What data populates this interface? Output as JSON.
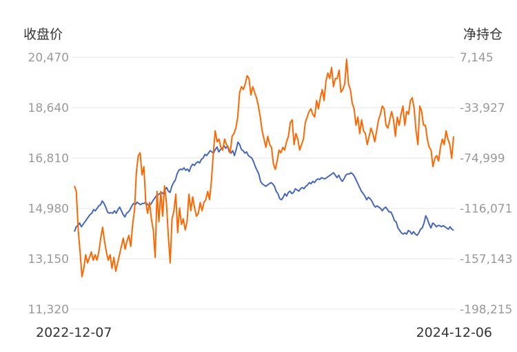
{
  "chart_data": {
    "type": "line",
    "left_axis_title": "收盘价",
    "right_axis_title": "净持仓",
    "x_start_label": "2022-12-07",
    "x_end_label": "2024-12-06",
    "y_left": {
      "ticks": [
        "20,470",
        "18,640",
        "16,810",
        "14,980",
        "13,150",
        "11,320"
      ],
      "range": [
        11320,
        20470
      ]
    },
    "y_right": {
      "ticks": [
        "7,145",
        "-33,927",
        "-74,999",
        "-116,071",
        "-157,143",
        "-198,215"
      ],
      "range": [
        -198215,
        7145
      ]
    },
    "grid": true,
    "series": [
      {
        "axis": "left",
        "color": "#ff6600",
        "values": [
          15800,
          15600,
          14200,
          13400,
          12500,
          12800,
          13300,
          13000,
          13200,
          13400,
          13100,
          13300,
          13100,
          13400,
          13900,
          14300,
          13800,
          13400,
          13100,
          13300,
          12800,
          13200,
          12700,
          13000,
          13300,
          13600,
          13900,
          13500,
          13800,
          14000,
          13600,
          14400,
          14900,
          16300,
          16900,
          17000,
          16200,
          16500,
          15200,
          14800,
          15200,
          14600,
          14200,
          13200,
          15600,
          14500,
          15600,
          14700,
          15800,
          15200,
          14000,
          13000,
          14600,
          14900,
          15500,
          14100,
          15000,
          14400,
          14600,
          14200,
          14500,
          15500,
          14900,
          15400,
          15000,
          14700,
          14800,
          15200,
          14900,
          15200,
          15300,
          15600,
          15300,
          16000,
          17000,
          17800,
          17400,
          17500,
          17200,
          17100,
          17500,
          17300,
          17200,
          17000,
          17600,
          17700,
          17900,
          18300,
          19200,
          19400,
          19300,
          19500,
          19800,
          19700,
          19100,
          19400,
          19200,
          19000,
          18700,
          18300,
          17800,
          17500,
          17200,
          17600,
          17300,
          17200,
          16600,
          16400,
          16700,
          17100,
          17000,
          17200,
          17100,
          17400,
          17600,
          18100,
          18200,
          17300,
          17700,
          17500,
          17100,
          17300,
          17500,
          18100,
          18300,
          18500,
          18600,
          18400,
          18300,
          18900,
          18600,
          19000,
          19300,
          18900,
          19600,
          19900,
          19700,
          20100,
          19400,
          19700,
          19700,
          20000,
          19200,
          19300,
          19500,
          20400,
          19500,
          19300,
          18800,
          18600,
          18000,
          18300,
          17700,
          18200,
          17800,
          17700,
          17300,
          17600,
          17900,
          17700,
          17400,
          17800,
          18200,
          18400,
          18700,
          18600,
          18000,
          17900,
          18200,
          18500,
          18200,
          17600,
          18300,
          18000,
          18400,
          18700,
          18000,
          18500,
          18400,
          18900,
          19000,
          18600,
          17800,
          17300,
          18700,
          18500,
          18000,
          18000,
          17500,
          17200,
          17100,
          16500,
          16800,
          16900,
          16700,
          17200,
          17500,
          17300,
          17800,
          17500,
          17300,
          16800,
          17600
        ]
      },
      {
        "axis": "right",
        "color": "#4466bb",
        "values": [
          -135000,
          -131000,
          -130000,
          -128000,
          -131000,
          -129000,
          -127000,
          -125000,
          -123000,
          -121000,
          -120000,
          -117000,
          -118000,
          -116000,
          -114000,
          -113000,
          -110000,
          -112000,
          -115000,
          -119000,
          -120000,
          -119500,
          -120000,
          -118000,
          -120000,
          -117000,
          -115000,
          -118000,
          -121000,
          -123000,
          -120000,
          -119000,
          -117000,
          -114000,
          -112000,
          -113000,
          -111000,
          -112000,
          -113000,
          -112000,
          -112000,
          -111000,
          -113000,
          -113500,
          -112500,
          -110000,
          -108000,
          -106000,
          -105000,
          -104000,
          -103000,
          -104000,
          -101000,
          -99000,
          -102000,
          -103000,
          -98000,
          -95000,
          -93000,
          -88000,
          -85000,
          -84000,
          -84500,
          -83000,
          -85000,
          -84000,
          -86000,
          -82000,
          -80000,
          -81000,
          -79000,
          -78000,
          -79000,
          -76000,
          -75000,
          -72000,
          -73000,
          -71000,
          -69000,
          -70000,
          -71000,
          -68000,
          -66000,
          -70000,
          -68000,
          -67000,
          -65000,
          -67000,
          -65000,
          -70000,
          -71000,
          -69000,
          -73000,
          -68000,
          -62000,
          -64000,
          -68000,
          -69000,
          -71000,
          -70000,
          -73000,
          -74000,
          -75000,
          -78000,
          -82000,
          -85000,
          -88000,
          -94000,
          -96000,
          -97000,
          -98000,
          -97000,
          -96000,
          -95000,
          -96000,
          -98000,
          -102000,
          -104000,
          -108000,
          -109000,
          -107000,
          -104000,
          -106000,
          -103000,
          -102000,
          -104000,
          -103000,
          -100000,
          -101000,
          -102000,
          -100000,
          -99000,
          -100000,
          -98000,
          -97000,
          -95000,
          -96000,
          -94000,
          -95000,
          -93000,
          -92000,
          -92500,
          -91000,
          -91500,
          -92000,
          -91000,
          -90000,
          -89000,
          -88000,
          -87000,
          -89000,
          -91000,
          -89000,
          -92000,
          -94000,
          -92000,
          -89000,
          -88000,
          -88000,
          -87000,
          -88000,
          -90000,
          -93000,
          -96000,
          -99000,
          -102000,
          -104000,
          -106000,
          -109000,
          -107000,
          -108000,
          -110000,
          -113000,
          -115000,
          -114000,
          -115000,
          -116000,
          -118000,
          -116000,
          -115000,
          -117000,
          -119000,
          -119000,
          -122000,
          -126000,
          -127000,
          -132000,
          -134000,
          -136000,
          -137000,
          -136000,
          -137000,
          -134000,
          -135000,
          -137000,
          -135000,
          -137000,
          -138000,
          -136000,
          -133000,
          -132000,
          -128000,
          -122000,
          -125000,
          -129000,
          -132000,
          -128000,
          -129000,
          -131000,
          -130000,
          -130000,
          -131000,
          -130000,
          -131000,
          -132000,
          -133000,
          -131000,
          -133000,
          -134000
        ]
      }
    ]
  }
}
